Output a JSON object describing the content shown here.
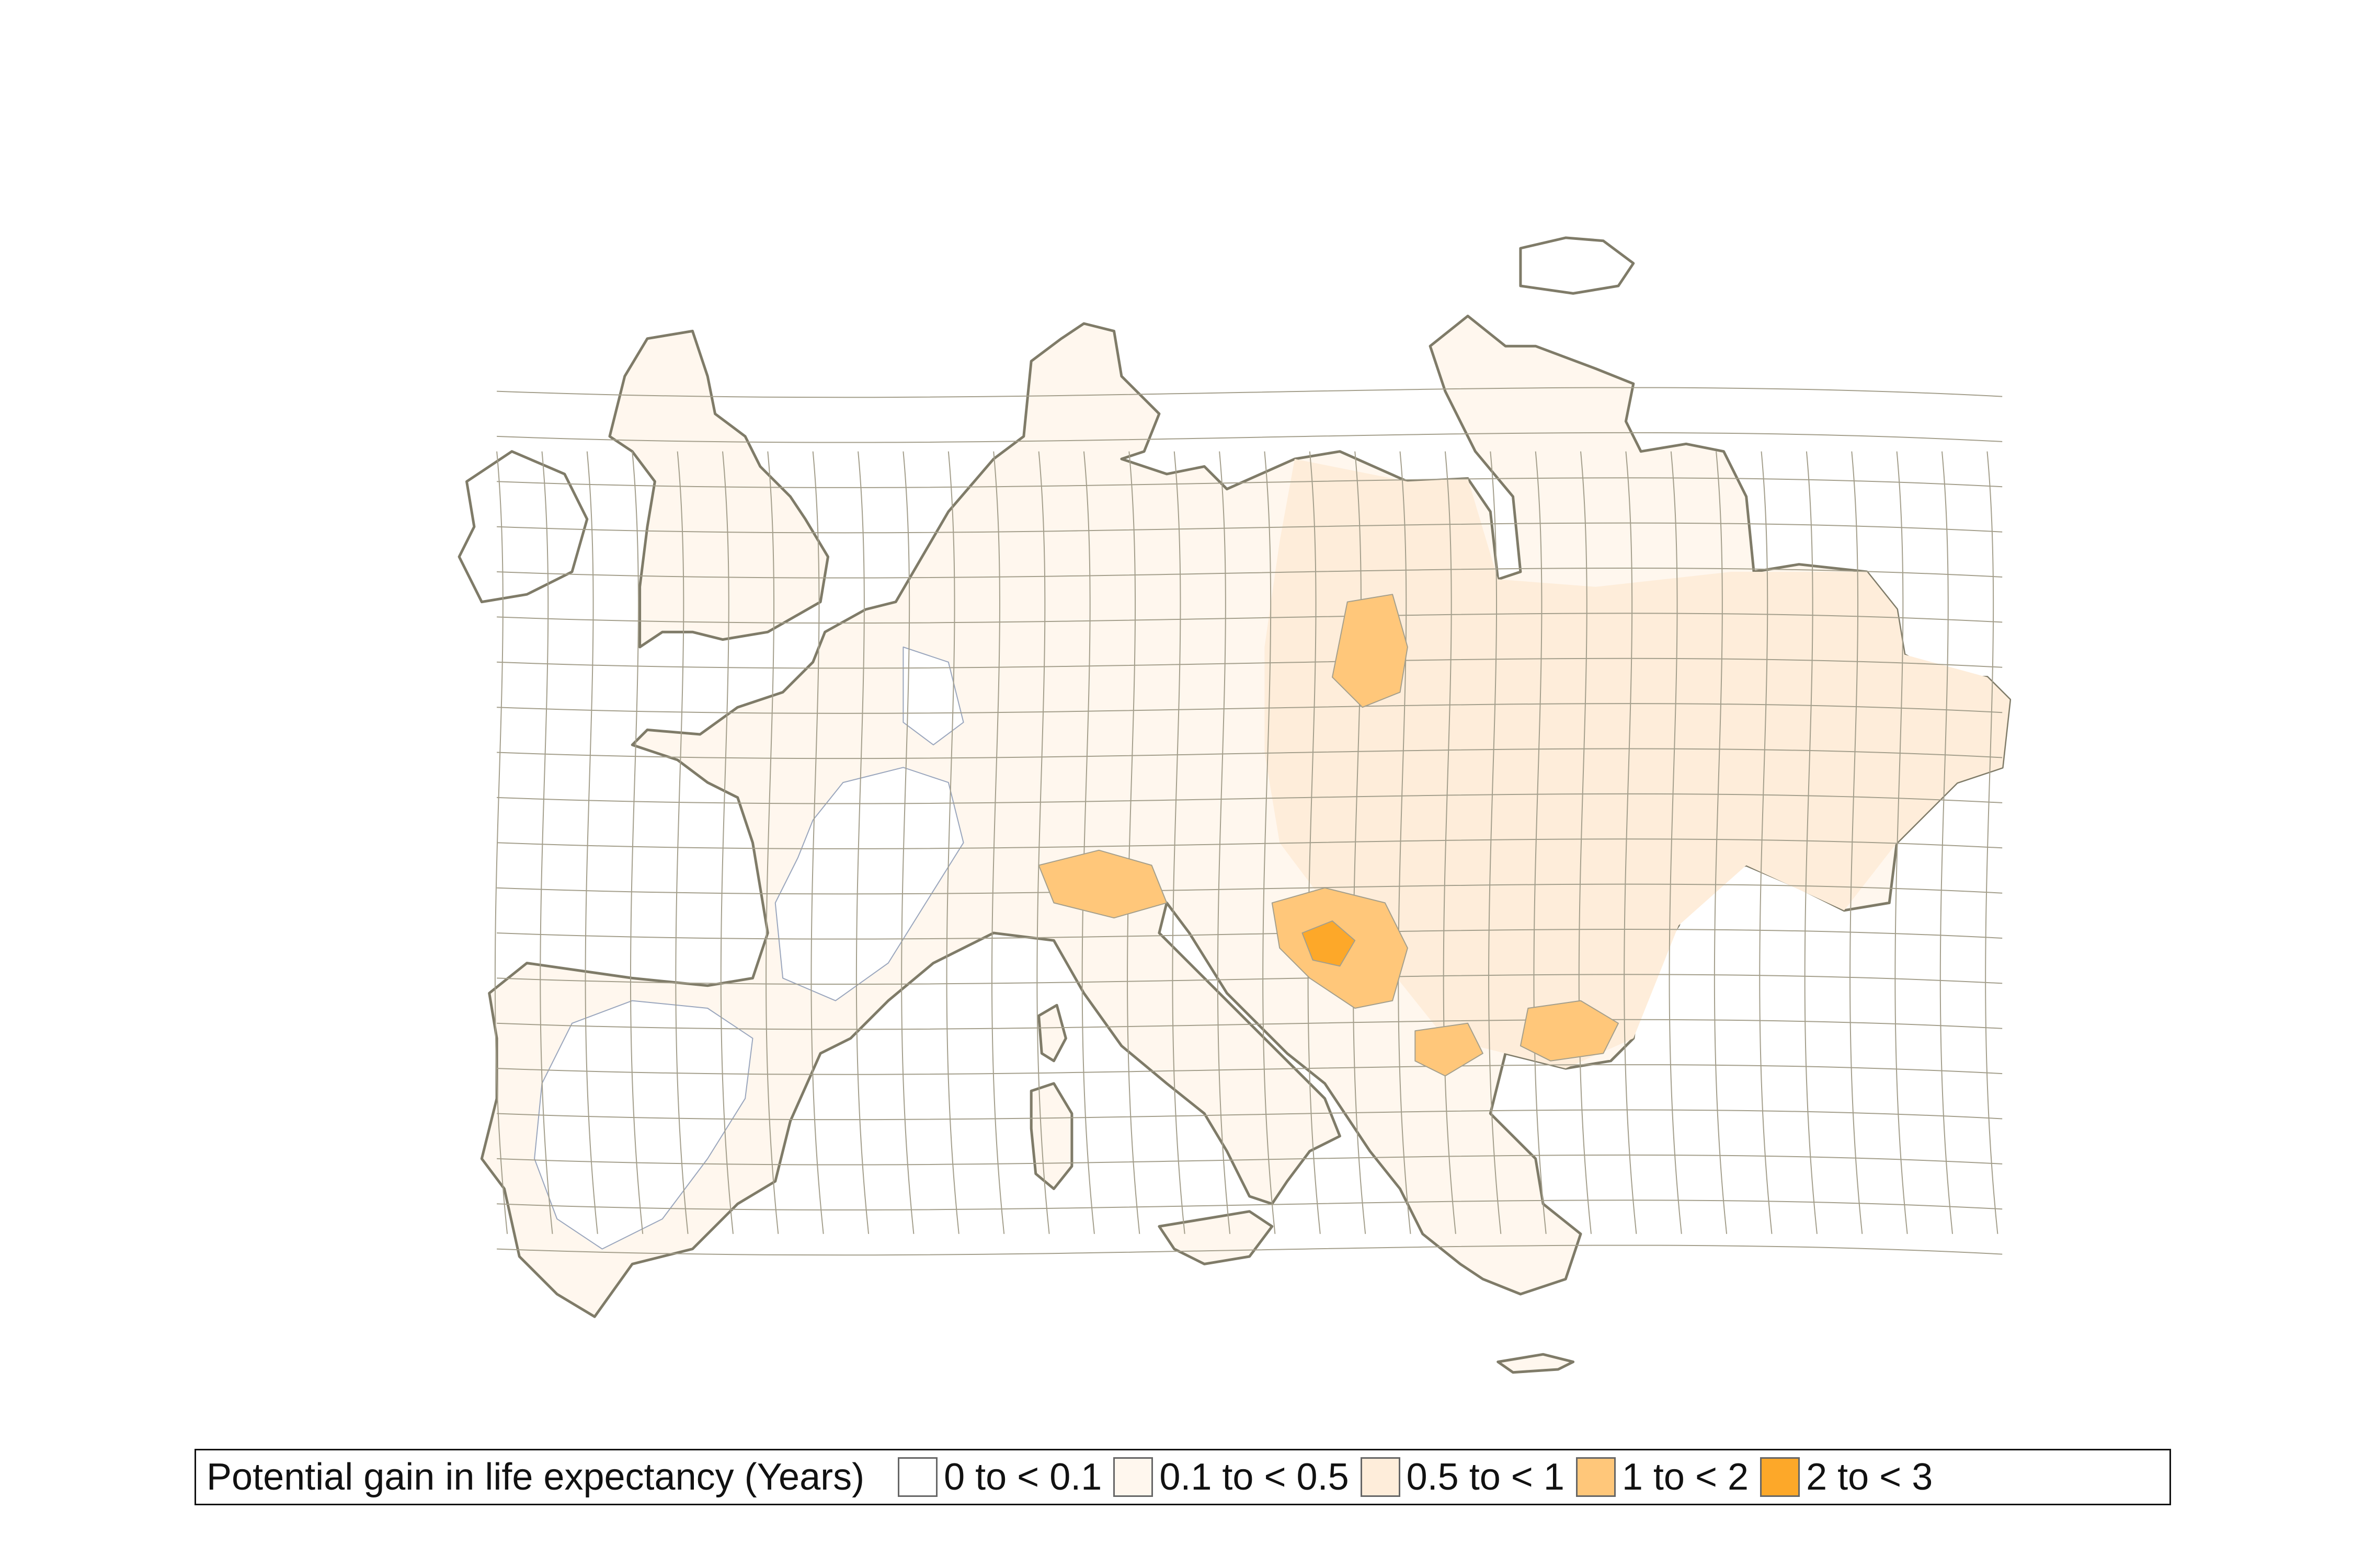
{
  "map": {
    "legend_title": "Potential gain in life expectancy (Years)",
    "classes": [
      {
        "label": "0 to < 0.1",
        "color": "#ffffff"
      },
      {
        "label": "0.1 to < 0.5",
        "color": "#fff7ee"
      },
      {
        "label": "0.5 to < 1",
        "color": "#feedda"
      },
      {
        "label": "1 to < 2",
        "color": "#ffc77a"
      },
      {
        "label": "2 to < 3",
        "color": "#fda829"
      }
    ],
    "colors": {
      "coastline": "#7f7b68",
      "region_border": "#a49f8c",
      "low_region_border": "#9aa6bd"
    }
  }
}
